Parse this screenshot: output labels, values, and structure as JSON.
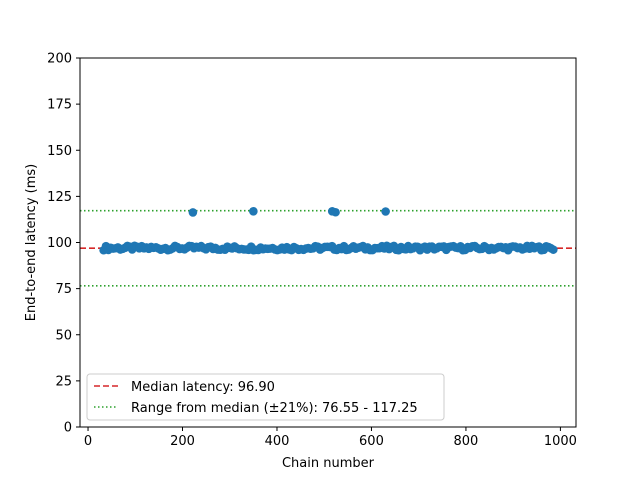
{
  "chart_data": {
    "type": "scatter",
    "title": "",
    "xlabel": "Chain number",
    "ylabel": "End-to-end latency (ms)",
    "xlim": [
      -17,
      1033
    ],
    "ylim": [
      0,
      200
    ],
    "xticks": [
      0,
      200,
      400,
      600,
      800,
      1000
    ],
    "yticks": [
      0,
      25,
      50,
      75,
      100,
      125,
      150,
      175,
      200
    ],
    "grid": false,
    "legend_position": "lower-left",
    "colors": {
      "points": "#1f77b4",
      "median": "#d62728",
      "range": "#2ca02c"
    },
    "series": [
      {
        "outliers": [
          [
            222,
            116.3
          ],
          [
            350,
            116.9
          ],
          [
            517,
            116.9
          ],
          [
            524,
            116.4
          ],
          [
            630,
            116.8
          ]
        ],
        "cluster": {
          "x_start": 33,
          "x_end": 985,
          "count": 190,
          "y_min": 95.8,
          "y_max": 98.2
        }
      }
    ],
    "reference_lines": [
      {
        "name": "median",
        "label": "Median latency: 96.90",
        "value": 96.9,
        "style": "dashed"
      },
      {
        "name": "range_low",
        "label": "Range from median (±21%): 76.55 - 117.25",
        "value": 76.55,
        "style": "dotted"
      },
      {
        "name": "range_high",
        "label": "",
        "value": 117.25,
        "style": "dotted"
      }
    ],
    "legend": [
      {
        "label": "Median latency: 96.90",
        "style": "dashed",
        "color": "#d62728"
      },
      {
        "label": "Range from median (±21%): 76.55 - 117.25",
        "style": "dotted",
        "color": "#2ca02c"
      }
    ]
  }
}
